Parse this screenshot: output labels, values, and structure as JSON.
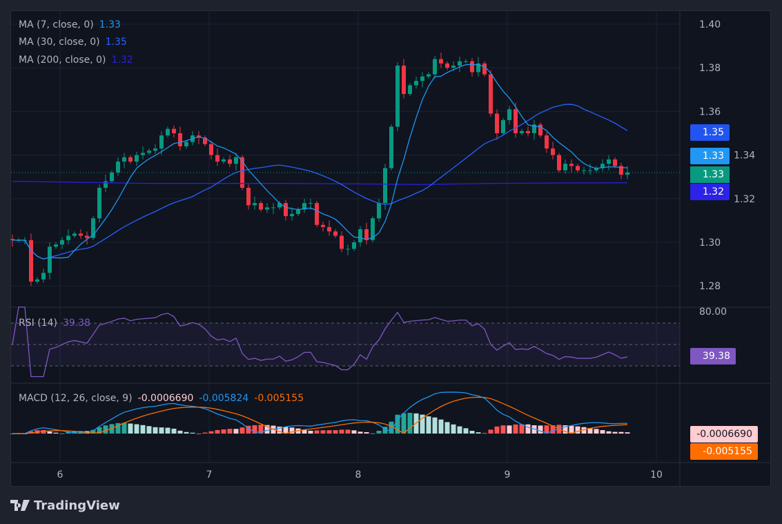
{
  "legend": {
    "ma7": {
      "label": "MA (7, close, 0)",
      "value": "1.33",
      "color": "#2196f3"
    },
    "ma30": {
      "label": "MA (30, close, 0)",
      "value": "1.35",
      "color": "#2962ff"
    },
    "ma200": {
      "label": "MA (200, close, 0)",
      "value": "1.32",
      "color": "#2b1fe0"
    },
    "rsi": {
      "label": "RSI (14)",
      "value": "39.38",
      "color": "#7e57c2"
    },
    "macd": {
      "label": "MACD (12, 26, close, 9)",
      "hist": "-0.0006690",
      "macd": "-0.005824",
      "signal": "-0.005155"
    }
  },
  "price_tags": [
    {
      "text": "1.35",
      "color": "#2154f0"
    },
    {
      "text": "1.33",
      "color": "#2196f3"
    },
    {
      "text": "1.33",
      "color": "#089981"
    },
    {
      "text": "1.32",
      "color": "#2c22e8"
    }
  ],
  "rsi_tag": {
    "text": "39.38",
    "color": "#7e57c2"
  },
  "rsi_axis_label": "80.00",
  "macd_tags": [
    {
      "text": "-0.0006690",
      "color": "#ffcdd2",
      "fg": "#131722"
    },
    {
      "text": "-0.005155",
      "color": "#ff6d00",
      "fg": "#ffffff"
    }
  ],
  "brand": "TradingView",
  "chart_data": {
    "type": "candlestick",
    "price_axis_ticks": [
      "1.40",
      "1.38",
      "1.36",
      "1.34",
      "1.32",
      "1.30",
      "1.28"
    ],
    "time_axis_ticks": [
      "6",
      "7",
      "8",
      "9",
      "10"
    ],
    "ylim": [
      1.275,
      1.405
    ],
    "closes": [
      1.301,
      1.301,
      1.301,
      1.282,
      1.283,
      1.286,
      1.298,
      1.299,
      1.301,
      1.303,
      1.304,
      1.303,
      1.302,
      1.311,
      1.325,
      1.328,
      1.332,
      1.337,
      1.339,
      1.337,
      1.34,
      1.341,
      1.342,
      1.343,
      1.349,
      1.352,
      1.35,
      1.344,
      1.346,
      1.349,
      1.348,
      1.345,
      1.34,
      1.337,
      1.338,
      1.336,
      1.339,
      1.325,
      1.317,
      1.318,
      1.315,
      1.316,
      1.316,
      1.318,
      1.312,
      1.313,
      1.315,
      1.318,
      1.318,
      1.308,
      1.307,
      1.305,
      1.303,
      1.297,
      1.297,
      1.3,
      1.306,
      1.301,
      1.311,
      1.318,
      1.334,
      1.353,
      1.381,
      1.368,
      1.372,
      1.374,
      1.376,
      1.377,
      1.384,
      1.382,
      1.38,
      1.381,
      1.383,
      1.383,
      1.378,
      1.382,
      1.377,
      1.359,
      1.35,
      1.356,
      1.361,
      1.35,
      1.351,
      1.35,
      1.354,
      1.349,
      1.343,
      1.34,
      1.333,
      1.336,
      1.335,
      1.333,
      1.333,
      1.333,
      1.334,
      1.336,
      1.338,
      1.335,
      1.331,
      1.332
    ],
    "ma200": [
      1.328,
      1.3275,
      1.327,
      1.327,
      1.327,
      1.3268,
      1.3265,
      1.327,
      1.3272,
      1.3273
    ],
    "rsi_levels": [
      70,
      50,
      30
    ],
    "up_color": "#089981",
    "down_color": "#f23645"
  }
}
